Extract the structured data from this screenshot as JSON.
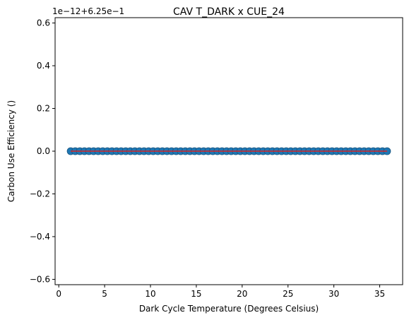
{
  "chart_data": {
    "type": "scatter",
    "title": "CAV T_DARK x CUE_24",
    "xlabel": "Dark Cycle Temperature (Degrees Celsius)",
    "ylabel": "Carbon Use Efficiency ()",
    "offset_text": "1e−12+6.25e−1",
    "xlim": [
      -0.4,
      37.5
    ],
    "ylim": [
      -0.625,
      0.625
    ],
    "x_ticks": [
      0,
      5,
      10,
      15,
      20,
      25,
      30,
      35
    ],
    "y_ticks": [
      -0.6,
      -0.4,
      -0.2,
      0.0,
      0.2,
      0.4,
      0.6
    ],
    "x_tick_labels": [
      "0",
      "5",
      "10",
      "15",
      "20",
      "25",
      "30",
      "35"
    ],
    "y_tick_labels": [
      "−0.6",
      "−0.4",
      "−0.2",
      "0.0",
      "0.2",
      "0.4",
      "0.6"
    ],
    "grid": false,
    "series": [
      {
        "kind": "points",
        "x_start": 1.3,
        "x_end": 35.8,
        "x_step": 0.5,
        "y": 0.0,
        "color": "#1f77b4"
      },
      {
        "kind": "line",
        "x": [
          1.3,
          35.8
        ],
        "y": [
          0.0,
          0.0
        ],
        "color": "#d62728"
      }
    ]
  }
}
